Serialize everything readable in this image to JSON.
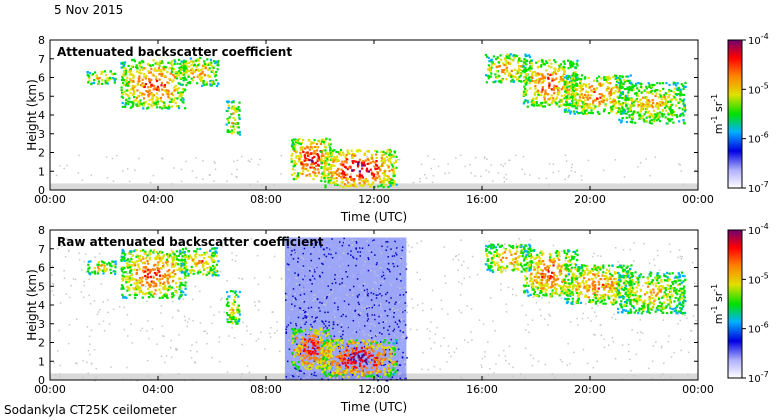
{
  "header": {
    "date": "5 Nov 2015"
  },
  "footer": {
    "instrument": "Sodankyla CT25K ceilometer"
  },
  "chart_data": [
    {
      "type": "heatmap",
      "title": "Attenuated backscatter coefficient",
      "xlabel": "Time (UTC)",
      "ylabel": "Height (km)",
      "xlim": [
        0,
        24
      ],
      "ylim": [
        0,
        8
      ],
      "x_ticks": [
        "00:00",
        "04:00",
        "08:00",
        "12:00",
        "16:00",
        "20:00",
        "00:00"
      ],
      "y_ticks": [
        "0",
        "1",
        "2",
        "3",
        "4",
        "5",
        "6",
        "7",
        "8"
      ],
      "colorbar": {
        "label_main": "m",
        "label_exp1": "-1",
        "label_unit": " sr",
        "label_exp2": "-1",
        "ticks": [
          {
            "base": "10",
            "exp": "-4"
          },
          {
            "base": "10",
            "exp": "-5"
          },
          {
            "base": "10",
            "exp": "-6"
          },
          {
            "base": "10",
            "exp": "-7"
          }
        ],
        "scale": "log",
        "range": [
          1e-07,
          0.0001
        ],
        "colors": [
          "#ffffff",
          "#b0b0ff",
          "#0000e0",
          "#00b0ff",
          "#00e000",
          "#e0e000",
          "#ff8000",
          "#ff0000",
          "#700070"
        ]
      },
      "features": [
        {
          "t0": 1.3,
          "t1": 2.4,
          "h0": 5.7,
          "h1": 6.4,
          "level": 0.55
        },
        {
          "t0": 2.6,
          "t1": 5.0,
          "h0": 4.4,
          "h1": 7.0,
          "level": 0.7
        },
        {
          "t0": 4.8,
          "t1": 6.2,
          "h0": 5.6,
          "h1": 7.1,
          "level": 0.6
        },
        {
          "t0": 6.5,
          "t1": 7.0,
          "h0": 3.0,
          "h1": 4.8,
          "level": 0.55
        },
        {
          "t0": 8.9,
          "t1": 10.4,
          "h0": 0.6,
          "h1": 2.8,
          "level": 0.8
        },
        {
          "t0": 10.0,
          "t1": 12.8,
          "h0": 0.2,
          "h1": 2.2,
          "level": 0.85
        },
        {
          "t0": 16.1,
          "t1": 17.8,
          "h0": 5.8,
          "h1": 7.3,
          "level": 0.6
        },
        {
          "t0": 17.5,
          "t1": 19.5,
          "h0": 4.5,
          "h1": 7.0,
          "level": 0.7
        },
        {
          "t0": 19.0,
          "t1": 21.5,
          "h0": 4.1,
          "h1": 6.2,
          "level": 0.65
        },
        {
          "t0": 21.0,
          "t1": 23.5,
          "h0": 3.6,
          "h1": 5.8,
          "level": 0.55
        }
      ]
    },
    {
      "type": "heatmap",
      "title": "Raw attenuated backscatter coefficient",
      "xlabel": "Time (UTC)",
      "ylabel": "Height (km)",
      "xlim": [
        0,
        24
      ],
      "ylim": [
        0,
        8
      ],
      "x_ticks": [
        "00:00",
        "04:00",
        "08:00",
        "12:00",
        "16:00",
        "20:00",
        "00:00"
      ],
      "y_ticks": [
        "0",
        "1",
        "2",
        "3",
        "4",
        "5",
        "6",
        "7",
        "8"
      ],
      "colorbar": {
        "label_main": "m",
        "label_exp1": "-1",
        "label_unit": " sr",
        "label_exp2": "-1",
        "ticks": [
          {
            "base": "10",
            "exp": "-4"
          },
          {
            "base": "10",
            "exp": "-5"
          },
          {
            "base": "10",
            "exp": "-6"
          },
          {
            "base": "10",
            "exp": "-7"
          }
        ],
        "scale": "log",
        "range": [
          1e-07,
          0.0001
        ],
        "colors": [
          "#ffffff",
          "#b0b0ff",
          "#0000e0",
          "#00b0ff",
          "#00e000",
          "#e0e000",
          "#ff8000",
          "#ff0000",
          "#700070"
        ]
      },
      "noise_band": {
        "t0": 8.7,
        "t1": 13.2,
        "h0": 0.0,
        "h1": 7.6
      },
      "features": [
        {
          "t0": 1.3,
          "t1": 2.4,
          "h0": 5.7,
          "h1": 6.4,
          "level": 0.55
        },
        {
          "t0": 2.6,
          "t1": 5.0,
          "h0": 4.4,
          "h1": 7.0,
          "level": 0.7
        },
        {
          "t0": 4.8,
          "t1": 6.2,
          "h0": 5.6,
          "h1": 7.1,
          "level": 0.6
        },
        {
          "t0": 6.5,
          "t1": 7.0,
          "h0": 3.0,
          "h1": 4.8,
          "level": 0.55
        },
        {
          "t0": 8.9,
          "t1": 10.4,
          "h0": 0.6,
          "h1": 2.8,
          "level": 0.8
        },
        {
          "t0": 10.0,
          "t1": 12.8,
          "h0": 0.2,
          "h1": 2.2,
          "level": 0.85
        },
        {
          "t0": 16.1,
          "t1": 17.8,
          "h0": 5.8,
          "h1": 7.3,
          "level": 0.6
        },
        {
          "t0": 17.5,
          "t1": 19.5,
          "h0": 4.5,
          "h1": 7.0,
          "level": 0.7
        },
        {
          "t0": 19.0,
          "t1": 21.5,
          "h0": 4.1,
          "h1": 6.2,
          "level": 0.65
        },
        {
          "t0": 21.0,
          "t1": 23.5,
          "h0": 3.6,
          "h1": 5.8,
          "level": 0.55
        }
      ]
    }
  ]
}
